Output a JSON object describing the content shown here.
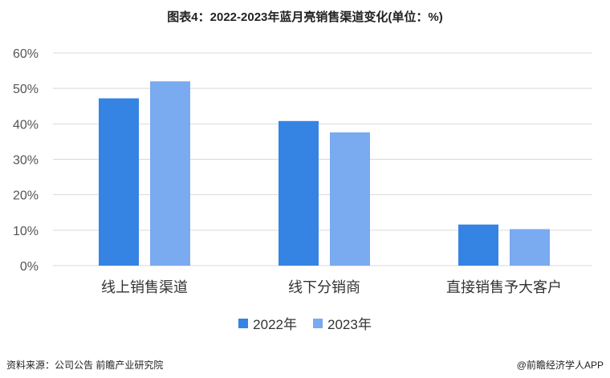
{
  "colors": {
    "series_2022": "#3584e4",
    "series_2023": "#7aaaf0",
    "grid": "#d9d9d9"
  },
  "footer": {
    "source": "资料来源：公司公告 前瞻产业研究院",
    "brand": "@前瞻经济学人APP"
  },
  "chart_data": {
    "type": "bar",
    "title": "图表4：2022-2023年蓝月亮销售渠道变化(单位：%)",
    "categories": [
      "线上销售渠道",
      "线下分销商",
      "直接销售予大客户"
    ],
    "series": [
      {
        "name": "2022年",
        "values": [
          47.2,
          40.8,
          11.6
        ]
      },
      {
        "name": "2023年",
        "values": [
          52.0,
          37.6,
          10.3
        ]
      }
    ],
    "ylim": [
      0,
      60
    ],
    "yticks": [
      "0%",
      "10%",
      "20%",
      "30%",
      "40%",
      "50%",
      "60%"
    ],
    "grid": true,
    "legend": "bottom"
  }
}
